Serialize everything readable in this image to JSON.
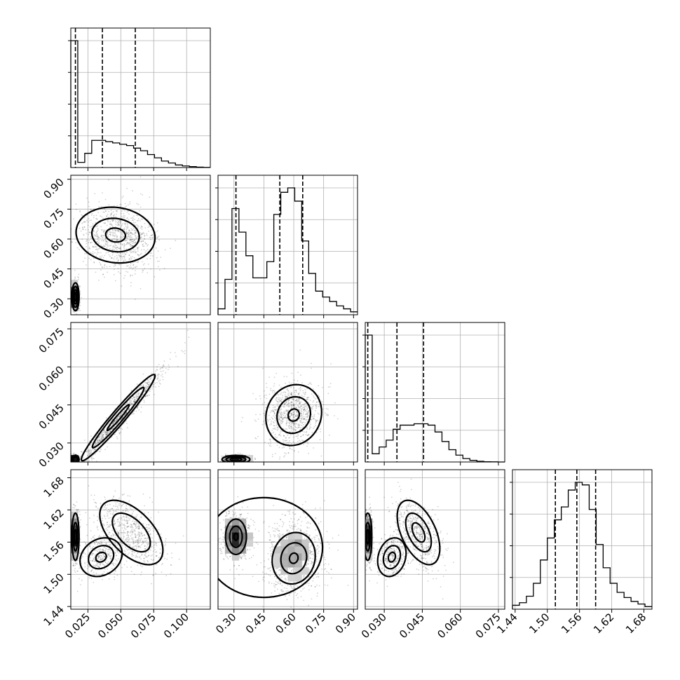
{
  "chart_data": {
    "type": "corner",
    "title": "",
    "grid": true,
    "parameters": [
      {
        "index": 0,
        "axis_label": "",
        "range": [
          0.012,
          0.118
        ],
        "ticks": [
          0.025,
          0.05,
          0.075,
          0.1
        ],
        "tick_labels": [
          "0.025",
          "0.050",
          "0.075",
          "0.100"
        ]
      },
      {
        "index": 1,
        "axis_label": "",
        "range": [
          0.22,
          0.92
        ],
        "ticks": [
          0.3,
          0.45,
          0.6,
          0.75,
          0.9
        ],
        "tick_labels": [
          "0.30",
          "0.45",
          "0.60",
          "0.75",
          "0.90"
        ]
      },
      {
        "index": 2,
        "axis_label": "",
        "range": [
          0.0225,
          0.0775
        ],
        "ticks": [
          0.03,
          0.045,
          0.06,
          0.075
        ],
        "tick_labels": [
          "0.030",
          "0.045",
          "0.060",
          "0.075"
        ]
      },
      {
        "index": 3,
        "axis_label": "",
        "range": [
          1.435,
          1.695
        ],
        "ticks": [
          1.44,
          1.5,
          1.56,
          1.62,
          1.68
        ],
        "tick_labels": [
          "1.44",
          "1.50",
          "1.56",
          "1.62",
          "1.68"
        ]
      }
    ],
    "histograms": [
      {
        "parameter": 0,
        "bins": 20,
        "counts": [
          0.98,
          0.04,
          0.11,
          0.21,
          0.21,
          0.2,
          0.19,
          0.18,
          0.17,
          0.15,
          0.13,
          0.1,
          0.075,
          0.05,
          0.035,
          0.02,
          0.012,
          0.007,
          0.003,
          0.001
        ],
        "quantiles": [
          0.0155,
          0.036,
          0.061
        ]
      },
      {
        "parameter": 1,
        "bins": 20,
        "counts": [
          0.04,
          0.24,
          0.72,
          0.56,
          0.4,
          0.25,
          0.25,
          0.36,
          0.68,
          0.83,
          0.86,
          0.77,
          0.5,
          0.28,
          0.16,
          0.12,
          0.09,
          0.06,
          0.04,
          0.02
        ],
        "quantiles": [
          0.31,
          0.53,
          0.645
        ]
      },
      {
        "parameter": 2,
        "bins": 20,
        "counts": [
          0.93,
          0.06,
          0.11,
          0.16,
          0.24,
          0.27,
          0.27,
          0.28,
          0.28,
          0.27,
          0.22,
          0.15,
          0.09,
          0.05,
          0.025,
          0.012,
          0.005,
          0.002,
          0.001,
          0.0
        ],
        "quantiles": [
          0.0235,
          0.035,
          0.0455
        ]
      },
      {
        "parameter": 3,
        "bins": 20,
        "counts": [
          0.03,
          0.05,
          0.1,
          0.2,
          0.38,
          0.55,
          0.69,
          0.79,
          0.92,
          0.98,
          0.96,
          0.77,
          0.5,
          0.32,
          0.2,
          0.13,
          0.09,
          0.06,
          0.04,
          0.02
        ],
        "quantiles": [
          1.515,
          1.555,
          1.59
        ]
      }
    ],
    "pairs": [
      {
        "x": 0,
        "y": 1,
        "clusters": [
          {
            "weight": 0.45,
            "mean": [
              0.0155,
              0.31
            ],
            "sd": [
              0.0014,
              0.035
            ],
            "rho": 0.0
          },
          {
            "weight": 0.55,
            "mean": [
              0.048,
              0.61
            ],
            "sd": [
              0.015,
              0.09
            ],
            "rho": -0.1
          }
        ],
        "contours": [
          {
            "mean": [
              0.0155,
              0.31
            ],
            "sd": [
              0.0014,
              0.035
            ],
            "rho": 0.0,
            "levels": [
              0.6,
              1.0,
              1.5,
              2.0
            ]
          },
          {
            "mean": [
              0.046,
              0.62
            ],
            "sd": [
              0.015,
              0.07
            ],
            "rho": -0.1,
            "levels": [
              0.5,
              1.2,
              2.0
            ]
          }
        ]
      },
      {
        "x": 0,
        "y": 2,
        "clusters": [
          {
            "weight": 0.45,
            "mean": [
              0.0155,
              0.0235
            ],
            "sd": [
              0.0014,
              0.0008
            ],
            "rho": 0.0
          },
          {
            "weight": 0.55,
            "mean": [
              0.05,
              0.04
            ],
            "sd": [
              0.016,
              0.0095
            ],
            "rho": 0.97
          }
        ],
        "contours": [
          {
            "mean": [
              0.0155,
              0.0235
            ],
            "sd": [
              0.0014,
              0.0008
            ],
            "rho": 0.0,
            "levels": [
              1.2,
              2.0
            ]
          },
          {
            "mean": [
              0.048,
              0.04
            ],
            "sd": [
              0.014,
              0.0085
            ],
            "rho": 0.97,
            "levels": [
              0.6,
              1.4,
              2.0
            ]
          }
        ]
      },
      {
        "x": 0,
        "y": 3,
        "clusters": [
          {
            "weight": 0.45,
            "mean": [
              0.0155,
              1.57
            ],
            "sd": [
              0.0014,
              0.022
            ],
            "rho": 0.0
          },
          {
            "weight": 0.2,
            "mean": [
              0.035,
              1.535
            ],
            "sd": [
              0.008,
              0.02
            ],
            "rho": 0.2
          },
          {
            "weight": 0.35,
            "mean": [
              0.058,
              1.575
            ],
            "sd": [
              0.013,
              0.032
            ],
            "rho": -0.55
          }
        ],
        "contours": [
          {
            "mean": [
              0.0155,
              1.57
            ],
            "sd": [
              0.0014,
              0.022
            ],
            "rho": 0.0,
            "levels": [
              0.6,
              1.2,
              2.0
            ]
          },
          {
            "mean": [
              0.035,
              1.532
            ],
            "sd": [
              0.008,
              0.018
            ],
            "rho": 0.2,
            "levels": [
              0.5,
              1.2,
              2.0
            ]
          },
          {
            "mean": [
              0.058,
              1.578
            ],
            "sd": [
              0.012,
              0.03
            ],
            "rho": -0.55,
            "levels": [
              1.2,
              2.0
            ]
          }
        ]
      },
      {
        "x": 1,
        "y": 2,
        "clusters": [
          {
            "weight": 0.45,
            "mean": [
              0.31,
              0.0235
            ],
            "sd": [
              0.035,
              0.0008
            ],
            "rho": 0.0
          },
          {
            "weight": 0.55,
            "mean": [
              0.59,
              0.041
            ],
            "sd": [
              0.075,
              0.0065
            ],
            "rho": 0.1
          }
        ],
        "contours": [
          {
            "mean": [
              0.31,
              0.0235
            ],
            "sd": [
              0.035,
              0.0008
            ],
            "rho": 0.0,
            "levels": [
              0.8,
              1.4,
              2.0
            ]
          },
          {
            "mean": [
              0.6,
              0.041
            ],
            "sd": [
              0.07,
              0.006
            ],
            "rho": 0.1,
            "levels": [
              0.4,
              1.2,
              2.0
            ]
          }
        ]
      },
      {
        "x": 1,
        "y": 3,
        "clusters": [
          {
            "weight": 0.45,
            "mean": [
              0.31,
              1.57
            ],
            "sd": [
              0.035,
              0.022
            ],
            "rho": 0.0
          },
          {
            "weight": 0.55,
            "mean": [
              0.6,
              1.535
            ],
            "sd": [
              0.075,
              0.035
            ],
            "rho": 0.1
          }
        ],
        "contours": [
          {
            "mean": [
              0.31,
              1.57
            ],
            "sd": [
              0.035,
              0.022
            ],
            "rho": 0.0,
            "levels": [
              0.3,
              0.9,
              1.5
            ]
          },
          {
            "mean": [
              0.6,
              1.53
            ],
            "sd": [
              0.072,
              0.032
            ],
            "rho": 0.1,
            "levels": [
              0.3,
              0.9,
              1.5
            ]
          },
          {
            "mean": [
              0.45,
              1.55
            ],
            "sd": [
              0.19,
              0.06
            ],
            "rho": 0.0,
            "levels": [
              1.55
            ]
          }
        ]
      },
      {
        "x": 2,
        "y": 3,
        "clusters": [
          {
            "weight": 0.45,
            "mean": [
              0.0235,
              1.57
            ],
            "sd": [
              0.0008,
              0.022
            ],
            "rho": 0.0
          },
          {
            "weight": 0.2,
            "mean": [
              0.033,
              1.535
            ],
            "sd": [
              0.003,
              0.02
            ],
            "rho": 0.2
          },
          {
            "weight": 0.35,
            "mean": [
              0.0435,
              1.575
            ],
            "sd": [
              0.0045,
              0.032
            ],
            "rho": -0.5
          }
        ],
        "contours": [
          {
            "mean": [
              0.0235,
              1.57
            ],
            "sd": [
              0.0008,
              0.022
            ],
            "rho": 0.0,
            "levels": [
              0.6,
              1.2,
              2.0
            ]
          },
          {
            "mean": [
              0.033,
              1.532
            ],
            "sd": [
              0.0028,
              0.018
            ],
            "rho": 0.2,
            "levels": [
              0.5,
              1.2,
              2.0
            ]
          },
          {
            "mean": [
              0.0435,
              1.578
            ],
            "sd": [
              0.0042,
              0.03
            ],
            "rho": -0.5,
            "levels": [
              0.6,
              1.2,
              2.0
            ]
          }
        ]
      }
    ]
  }
}
